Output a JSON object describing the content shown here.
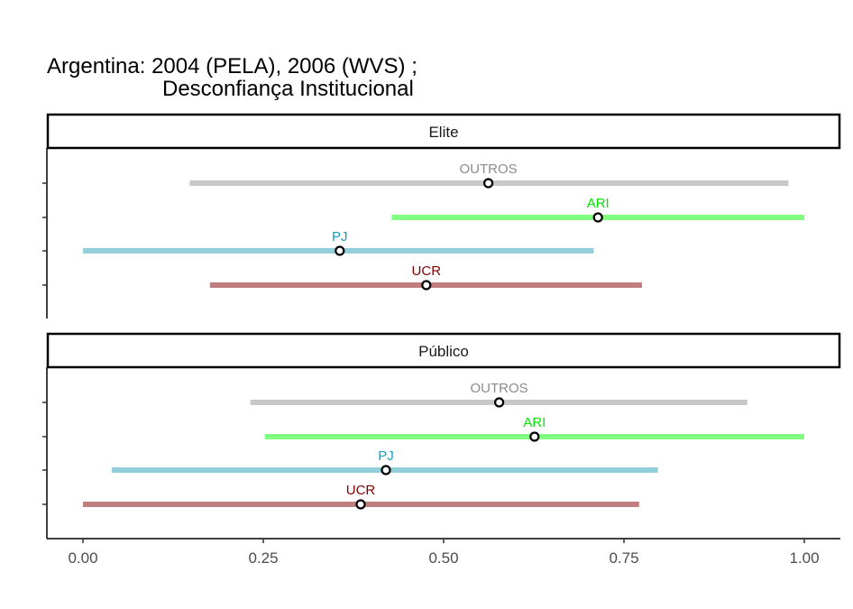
{
  "title_line1": "Argentina: 2004 (PELA), 2006 (WVS) ;",
  "title_line2": "Desconfiança Institucional",
  "chart_data": {
    "type": "pointrange",
    "xlim": [
      -0.05,
      1.05
    ],
    "x_ticks": [
      0,
      0.25,
      0.5,
      0.75,
      1
    ],
    "x_tick_labels": [
      "0.00",
      "0.25",
      "0.50",
      "0.75",
      "1.00"
    ],
    "grid": false,
    "series_colors": {
      "OUTROS": "#c8c8c8",
      "ARI": "#80ff80",
      "PJ": "#92cfdb",
      "UCR": "#bf7f7f"
    },
    "label_colors": {
      "OUTROS": "#8c8c8c",
      "ARI": "#00e600",
      "PJ": "#1a9fbf",
      "UCR": "#800000"
    },
    "panels": [
      {
        "name": "Elite",
        "rows": [
          {
            "party": "OUTROS",
            "low": 0.148,
            "mid": 0.562,
            "high": 0.978
          },
          {
            "party": "ARI",
            "low": 0.428,
            "mid": 0.714,
            "high": 1.0
          },
          {
            "party": "PJ",
            "low": 0.0,
            "mid": 0.356,
            "high": 0.708
          },
          {
            "party": "UCR",
            "low": 0.176,
            "mid": 0.476,
            "high": 0.775
          }
        ]
      },
      {
        "name": "Público",
        "rows": [
          {
            "party": "OUTROS",
            "low": 0.232,
            "mid": 0.577,
            "high": 0.921
          },
          {
            "party": "ARI",
            "low": 0.252,
            "mid": 0.626,
            "high": 1.0
          },
          {
            "party": "PJ",
            "low": 0.04,
            "mid": 0.42,
            "high": 0.797
          },
          {
            "party": "UCR",
            "low": 0.0,
            "mid": 0.385,
            "high": 0.771
          }
        ]
      }
    ]
  }
}
